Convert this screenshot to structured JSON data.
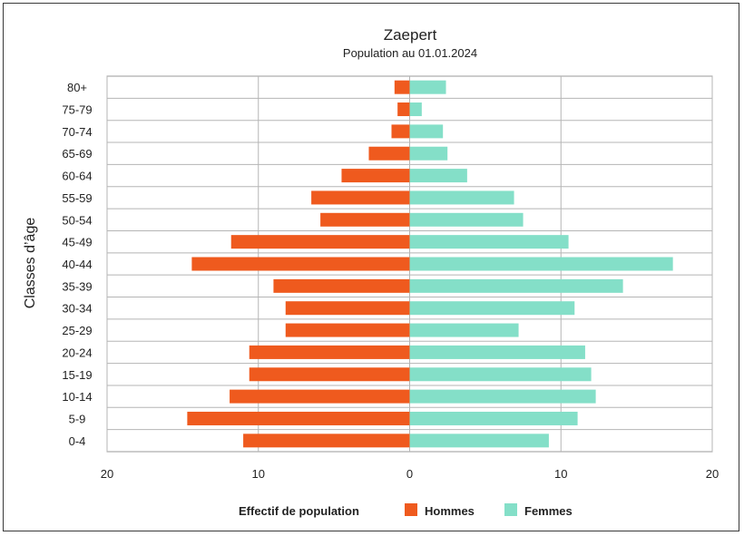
{
  "chart_data": {
    "type": "bar",
    "orientation": "horizontal-pyramid",
    "title": "Zaepert",
    "subtitle": "Population au 01.01.2024",
    "ylabel": "Classes d’âge",
    "xlabel": "Effectif de population",
    "xlim": [
      -20,
      20
    ],
    "xticks": [
      -20,
      -10,
      0,
      10,
      20
    ],
    "xtick_labels": [
      "20",
      "10",
      "0",
      "10",
      "20"
    ],
    "grid": true,
    "categories": [
      "80+",
      "75-79",
      "70-74",
      "65-69",
      "60-64",
      "55-59",
      "50-54",
      "45-49",
      "40-44",
      "35-39",
      "30-34",
      "25-29",
      "20-24",
      "15-19",
      "10-14",
      "5-9",
      "0-4"
    ],
    "series": [
      {
        "name": "Hommes",
        "color": "#ef5a1e",
        "values": [
          1,
          0.8,
          1.2,
          2.7,
          4.5,
          6.5,
          5.9,
          11.8,
          14.4,
          9.0,
          8.2,
          8.2,
          10.6,
          10.6,
          11.9,
          14.7,
          11.0
        ]
      },
      {
        "name": "Femmes",
        "color": "#84dfc8",
        "values": [
          2.4,
          0.8,
          2.2,
          2.5,
          3.8,
          6.9,
          7.5,
          10.5,
          17.4,
          14.1,
          10.9,
          7.2,
          11.6,
          12.0,
          12.3,
          11.1,
          9.2
        ]
      }
    ],
    "legend": {
      "title": "Effectif de population",
      "position": "bottom"
    }
  }
}
